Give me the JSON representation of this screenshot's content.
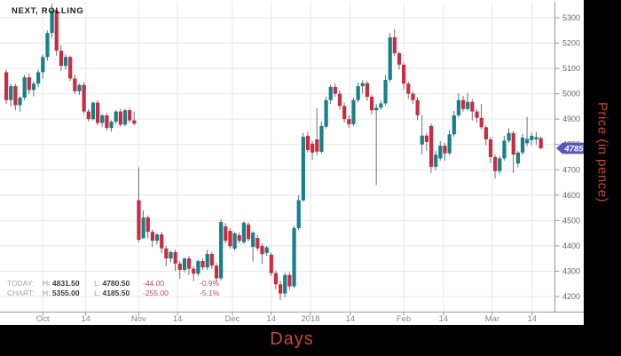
{
  "title": "NEXT, ROLLING",
  "stats": {
    "today": {
      "label": "TODAY:",
      "h_label": "H:",
      "high": "4831.50",
      "l_label": "L:",
      "low": "4780.50",
      "change": "-44.00",
      "change_pct": "-0.9%"
    },
    "chart": {
      "label": "CHART:",
      "h_label": "H:",
      "high": "5355.00",
      "l_label": "L:",
      "low": "4185.50",
      "change": "-255.00",
      "change_pct": "-5.1%"
    }
  },
  "axes": {
    "x_title": "Days",
    "y_title": "Price (in pence)",
    "y_ticks": [
      5300,
      5200,
      5100,
      5000,
      4900,
      4800,
      4700,
      4600,
      4500,
      4400,
      4300,
      4200
    ],
    "x_ticks": [
      {
        "label": "Oct",
        "index": 8
      },
      {
        "label": "14",
        "index": 17.4
      },
      {
        "label": "Nov",
        "index": 29
      },
      {
        "label": "14",
        "index": 37.5
      },
      {
        "label": "Dec",
        "index": 49.5
      },
      {
        "label": "14",
        "index": 58
      },
      {
        "label": "2018",
        "index": 66.6
      },
      {
        "label": "14",
        "index": 75.3
      },
      {
        "label": "Feb",
        "index": 87
      },
      {
        "label": "14",
        "index": 95.7
      },
      {
        "label": "Mar",
        "index": 106.4
      },
      {
        "label": "14",
        "index": 115.1
      }
    ],
    "last_price_label": "4785"
  },
  "colors": {
    "up": "#15808a",
    "down": "#cb2b3f",
    "wick": "#6e6e6e",
    "grid": "#e8e8e8",
    "axis": "#999999",
    "badge": "#5a58b5",
    "badge_text": "#ffffff",
    "axis_title": "#c9473a",
    "x_tick_label": "#888888",
    "y_tick_label": "#666666"
  },
  "chart_data": {
    "type": "candlestick",
    "title": "NEXT, ROLLING",
    "xlabel": "Days",
    "ylabel": "Price (in pence)",
    "ylim": [
      4150,
      5400
    ],
    "grid": true,
    "x_tick_labels": [
      "Oct",
      "14",
      "Nov",
      "14",
      "Dec",
      "14",
      "2018",
      "14",
      "Feb",
      "14",
      "Mar",
      "14"
    ],
    "last_price": 4785,
    "today": {
      "high": 4831.5,
      "low": 4780.5,
      "change": -44.0,
      "change_pct": -0.9
    },
    "chart_range": {
      "high": 5355.0,
      "low": 4185.5,
      "change": -255.0,
      "change_pct": -5.1
    },
    "ohlc": [
      [
        5085,
        5095,
        4960,
        4975
      ],
      [
        4975,
        5040,
        4950,
        5030
      ],
      [
        5030,
        5040,
        4935,
        4955
      ],
      [
        4955,
        4990,
        4930,
        4985
      ],
      [
        4985,
        5075,
        4975,
        5065
      ],
      [
        5065,
        5080,
        5000,
        5015
      ],
      [
        5015,
        5050,
        4990,
        5040
      ],
      [
        5040,
        5095,
        5025,
        5085
      ],
      [
        5085,
        5155,
        5060,
        5145
      ],
      [
        5145,
        5250,
        5130,
        5240
      ],
      [
        5240,
        5355,
        5220,
        5330
      ],
      [
        5330,
        5340,
        5150,
        5170
      ],
      [
        5170,
        5190,
        5090,
        5110
      ],
      [
        5110,
        5155,
        5095,
        5145
      ],
      [
        5145,
        5150,
        5050,
        5060
      ],
      [
        5060,
        5075,
        5000,
        5010
      ],
      [
        5010,
        5040,
        4995,
        5035
      ],
      [
        5035,
        5045,
        4920,
        4930
      ],
      [
        4930,
        4940,
        4890,
        4900
      ],
      [
        4900,
        4970,
        4895,
        4965
      ],
      [
        4965,
        4975,
        4875,
        4885
      ],
      [
        4885,
        4920,
        4870,
        4915
      ],
      [
        4915,
        4925,
        4855,
        4865
      ],
      [
        4865,
        4895,
        4850,
        4890
      ],
      [
        4890,
        4935,
        4880,
        4930
      ],
      [
        4930,
        4940,
        4870,
        4878
      ],
      [
        4878,
        4940,
        4872,
        4935
      ],
      [
        4935,
        4945,
        4885,
        4895
      ],
      [
        4895,
        4930,
        4875,
        4882
      ],
      [
        4580,
        4710,
        4414,
        4424
      ],
      [
        4430,
        4540,
        4428,
        4512
      ],
      [
        4512,
        4520,
        4430,
        4455
      ],
      [
        4455,
        4465,
        4395,
        4420
      ],
      [
        4420,
        4450,
        4405,
        4445
      ],
      [
        4445,
        4455,
        4370,
        4390
      ],
      [
        4390,
        4400,
        4320,
        4350
      ],
      [
        4350,
        4380,
        4335,
        4375
      ],
      [
        4375,
        4385,
        4300,
        4330
      ],
      [
        4330,
        4340,
        4270,
        4305
      ],
      [
        4305,
        4355,
        4295,
        4350
      ],
      [
        4350,
        4360,
        4285,
        4310
      ],
      [
        4310,
        4320,
        4260,
        4290
      ],
      [
        4290,
        4345,
        4280,
        4340
      ],
      [
        4340,
        4350,
        4305,
        4315
      ],
      [
        4315,
        4385,
        4305,
        4368
      ],
      [
        4368,
        4375,
        4310,
        4322
      ],
      [
        4322,
        4332,
        4258,
        4272
      ],
      [
        4272,
        4505,
        4263,
        4494
      ],
      [
        4477,
        4490,
        4410,
        4420
      ],
      [
        4459,
        4470,
        4388,
        4398
      ],
      [
        4389,
        4455,
        4382,
        4449
      ],
      [
        4442,
        4452,
        4410,
        4420
      ],
      [
        4414,
        4497,
        4408,
        4491
      ],
      [
        4484,
        4494,
        4418,
        4426
      ],
      [
        4396,
        4458,
        4337,
        4452
      ],
      [
        4431,
        4442,
        4380,
        4390
      ],
      [
        4400,
        4410,
        4328,
        4367
      ],
      [
        4372,
        4400,
        4360,
        4394
      ],
      [
        4365,
        4374,
        4280,
        4292
      ],
      [
        4292,
        4302,
        4228,
        4248
      ],
      [
        4248,
        4262,
        4185.5,
        4212
      ],
      [
        4212,
        4294,
        4196,
        4285
      ],
      [
        4285,
        4296,
        4226,
        4240
      ],
      [
        4240,
        4480,
        4234,
        4470
      ],
      [
        4470,
        4600,
        4462,
        4580
      ],
      [
        4580,
        4846,
        4574,
        4830
      ],
      [
        4834,
        4850,
        4768,
        4778
      ],
      [
        4803,
        4815,
        4740,
        4768
      ],
      [
        4820,
        4943,
        4758,
        4772
      ],
      [
        4771,
        4892,
        4763,
        4873
      ],
      [
        4870,
        4988,
        4862,
        4975
      ],
      [
        4975,
        5036,
        4960,
        5027
      ],
      [
        5027,
        5042,
        4988,
        5000
      ],
      [
        5000,
        5014,
        4938,
        4952
      ],
      [
        4952,
        4966,
        4886,
        4900
      ],
      [
        4900,
        4914,
        4866,
        4880
      ],
      [
        4880,
        4984,
        4872,
        4975
      ],
      [
        4975,
        5044,
        4966,
        5030
      ],
      [
        5030,
        5054,
        5000,
        5042
      ],
      [
        5042,
        5050,
        4972,
        4988
      ],
      [
        4988,
        4996,
        4918,
        4935
      ],
      [
        4935,
        4960,
        4640,
        4945
      ],
      [
        4945,
        4974,
        4936,
        4962
      ],
      [
        4962,
        5074,
        4954,
        5055
      ],
      [
        5055,
        5240,
        5046,
        5223
      ],
      [
        5223,
        5255,
        5148,
        5160
      ],
      [
        5160,
        5166,
        5096,
        5115
      ],
      [
        5115,
        5126,
        5016,
        5040
      ],
      [
        5040,
        5048,
        4980,
        5000
      ],
      [
        5000,
        5010,
        4960,
        4975
      ],
      [
        4975,
        4986,
        4896,
        4915
      ],
      [
        4800,
        4916,
        4760,
        4835
      ],
      [
        4835,
        4846,
        4776,
        4810
      ],
      [
        4873,
        4882,
        4687,
        4712
      ],
      [
        4712,
        4776,
        4698,
        4760
      ],
      [
        4745,
        4814,
        4736,
        4795
      ],
      [
        4795,
        4806,
        4736,
        4765
      ],
      [
        4765,
        4856,
        4756,
        4840
      ],
      [
        4840,
        4932,
        4830,
        4915
      ],
      [
        4915,
        5002,
        4906,
        4975
      ],
      [
        4975,
        4992,
        4930,
        4940
      ],
      [
        4940,
        5004,
        4934,
        4968
      ],
      [
        4968,
        4980,
        4894,
        4930
      ],
      [
        4930,
        4940,
        4886,
        4905
      ],
      [
        4905,
        4960,
        4860,
        4868
      ],
      [
        4868,
        4876,
        4796,
        4820
      ],
      [
        4820,
        4830,
        4726,
        4750
      ],
      [
        4750,
        4760,
        4666,
        4695
      ],
      [
        4695,
        4754,
        4684,
        4745
      ],
      [
        4745,
        4834,
        4736,
        4815
      ],
      [
        4815,
        4864,
        4806,
        4845
      ],
      [
        4845,
        4854,
        4688,
        4760
      ],
      [
        4725,
        4774,
        4710,
        4768
      ],
      [
        4768,
        4842,
        4758,
        4827
      ],
      [
        4805,
        4908,
        4793,
        4822
      ],
      [
        4817,
        4847,
        4796,
        4834
      ],
      [
        4820,
        4850,
        4798,
        4829
      ],
      [
        4825,
        4831.5,
        4780.5,
        4785
      ]
    ]
  }
}
